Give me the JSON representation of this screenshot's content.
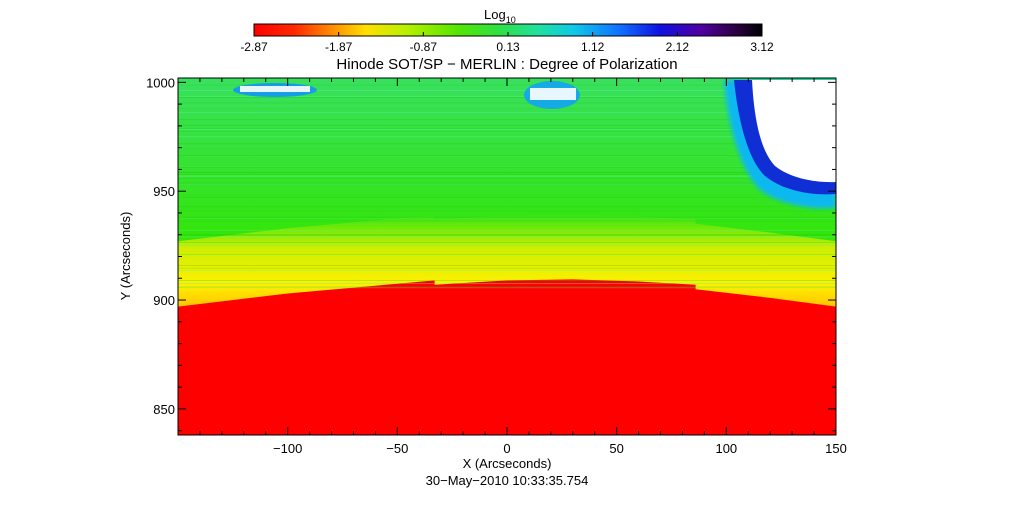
{
  "colorbar": {
    "label_main": "Log",
    "label_sub": "10",
    "ticks": [
      "-2.87",
      "-1.87",
      "-0.87",
      "0.13",
      "1.12",
      "2.12",
      "3.12"
    ],
    "range": [
      -2.87,
      3.12
    ],
    "colormap": [
      [
        0.0,
        "#ff0000"
      ],
      [
        0.08,
        "#ff2a00"
      ],
      [
        0.15,
        "#ff8800"
      ],
      [
        0.22,
        "#ffe000"
      ],
      [
        0.3,
        "#b8f000"
      ],
      [
        0.4,
        "#55e600"
      ],
      [
        0.48,
        "#30e040"
      ],
      [
        0.56,
        "#20e0a0"
      ],
      [
        0.63,
        "#10c8e8"
      ],
      [
        0.72,
        "#1070ff"
      ],
      [
        0.8,
        "#1010e0"
      ],
      [
        0.88,
        "#5000a0"
      ],
      [
        0.95,
        "#2a0040"
      ],
      [
        1.0,
        "#000000"
      ]
    ]
  },
  "chart_data": {
    "type": "heatmap",
    "title": "Hinode SOT/SP − MERLIN : Degree of Polarization",
    "xlabel": "X (Arcseconds)",
    "ylabel": "Y (Arcseconds)",
    "xlim": [
      -150,
      150
    ],
    "ylim": [
      838,
      1002
    ],
    "xticks": [
      -100,
      -50,
      0,
      50,
      100,
      150
    ],
    "yticks": [
      850,
      900,
      950,
      1000
    ],
    "xtick_labels": [
      "−100",
      "−50",
      "0",
      "50",
      "100",
      "150"
    ],
    "ytick_labels": [
      "850",
      "900",
      "950",
      "1000"
    ],
    "limb_y": [
      {
        "x": -150,
        "y": 897
      },
      {
        "x": -100,
        "y": 903
      },
      {
        "x": -50,
        "y": 907.5
      },
      {
        "x": -33,
        "y": 909
      },
      {
        "x": -33,
        "y": 907
      },
      {
        "x": 0,
        "y": 909
      },
      {
        "x": 30,
        "y": 909.5
      },
      {
        "x": 60,
        "y": 908.5
      },
      {
        "x": 86,
        "y": 907
      },
      {
        "x": 86,
        "y": 905
      },
      {
        "x": 120,
        "y": 901
      },
      {
        "x": 150,
        "y": 897
      }
    ],
    "regions": [
      {
        "kind": "disk",
        "value": -2.87,
        "color": "#ff0000"
      },
      {
        "kind": "limb-band",
        "value": -1.3,
        "color": "#f0f000"
      },
      {
        "kind": "off-limb",
        "value": 0.13,
        "color": "#33e600"
      },
      {
        "kind": "saturated",
        "value": "above range",
        "color": "#ffffff"
      }
    ],
    "colorbar_position": "top",
    "grid": false
  },
  "footer": {
    "timestamp": "30−May−2010 10:33:35.754"
  }
}
